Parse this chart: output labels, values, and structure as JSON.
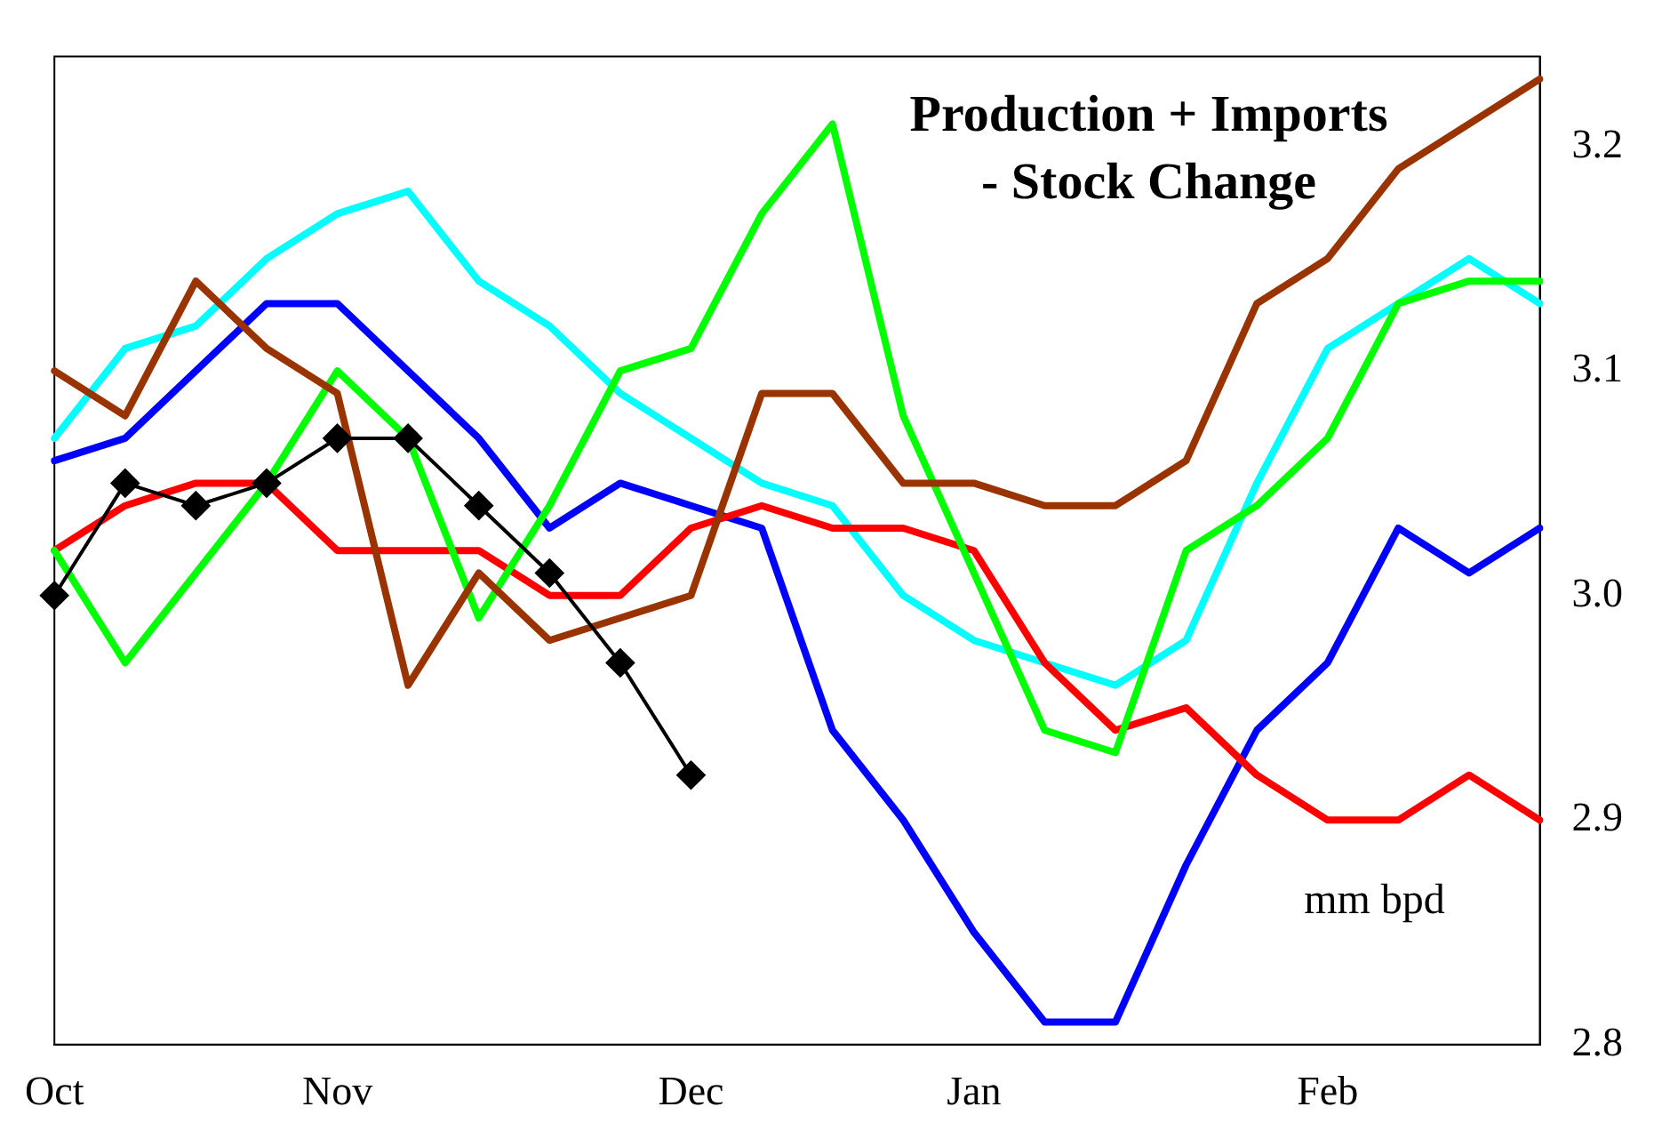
{
  "chart_data": {
    "type": "line",
    "title": "Production + Imports\n- Stock Change",
    "annotations": [
      "mm bpd"
    ],
    "categories": [
      "Oct",
      null,
      null,
      null,
      "Nov",
      null,
      null,
      null,
      null,
      "Dec",
      null,
      null,
      null,
      "Jan",
      null,
      null,
      null,
      null,
      "Feb",
      null,
      null,
      null
    ],
    "ylim": [
      2.8,
      3.24
    ],
    "yticks": [
      {
        "value": 2.8,
        "label": "2.8"
      },
      {
        "value": 2.9,
        "label": "2.9"
      },
      {
        "value": 3.0,
        "label": "3.0"
      },
      {
        "value": 3.1,
        "label": "3.1"
      },
      {
        "value": 3.2,
        "label": "3.2"
      }
    ],
    "grid": false,
    "legend": false,
    "series": [
      {
        "color": "#00ffff",
        "marker": "none",
        "values": [
          3.07,
          3.11,
          3.12,
          3.15,
          3.17,
          3.18,
          3.14,
          3.12,
          3.09,
          3.07,
          3.05,
          3.04,
          3.0,
          2.98,
          2.97,
          2.96,
          2.98,
          3.05,
          3.11,
          3.13,
          3.15,
          3.13
        ]
      },
      {
        "color": "#0000ff",
        "marker": "none",
        "values": [
          3.06,
          3.07,
          3.1,
          3.13,
          3.13,
          3.1,
          3.07,
          3.03,
          3.05,
          3.04,
          3.03,
          2.94,
          2.9,
          2.85,
          2.81,
          2.81,
          2.88,
          2.94,
          2.97,
          3.03,
          3.01,
          3.03
        ]
      },
      {
        "color": "#ff0000",
        "marker": "none",
        "values": [
          3.02,
          3.04,
          3.05,
          3.05,
          3.02,
          3.02,
          3.02,
          3.0,
          3.0,
          3.03,
          3.04,
          3.03,
          3.03,
          3.02,
          2.97,
          2.94,
          2.95,
          2.92,
          2.9,
          2.9,
          2.92,
          2.9
        ]
      },
      {
        "color": "#00ff00",
        "marker": "none",
        "values": [
          3.02,
          2.97,
          3.01,
          3.05,
          3.1,
          3.07,
          2.99,
          3.04,
          3.1,
          3.11,
          3.17,
          3.21,
          3.08,
          3.01,
          2.94,
          2.93,
          3.02,
          3.04,
          3.07,
          3.13,
          3.14,
          3.14
        ]
      },
      {
        "color": "#993300",
        "marker": "none",
        "values": [
          3.1,
          3.08,
          3.14,
          3.11,
          3.09,
          2.96,
          3.01,
          2.98,
          2.99,
          3.0,
          3.09,
          3.09,
          3.05,
          3.05,
          3.04,
          3.04,
          3.06,
          3.13,
          3.15,
          3.19,
          3.21,
          3.23
        ]
      },
      {
        "color": "#000000",
        "marker": "diamond",
        "values": [
          3.0,
          3.05,
          3.04,
          3.05,
          3.07,
          3.07,
          3.04,
          3.01,
          2.97,
          2.92,
          null,
          null,
          null,
          null,
          null,
          null,
          null,
          null,
          null,
          null,
          null,
          null
        ]
      }
    ]
  }
}
